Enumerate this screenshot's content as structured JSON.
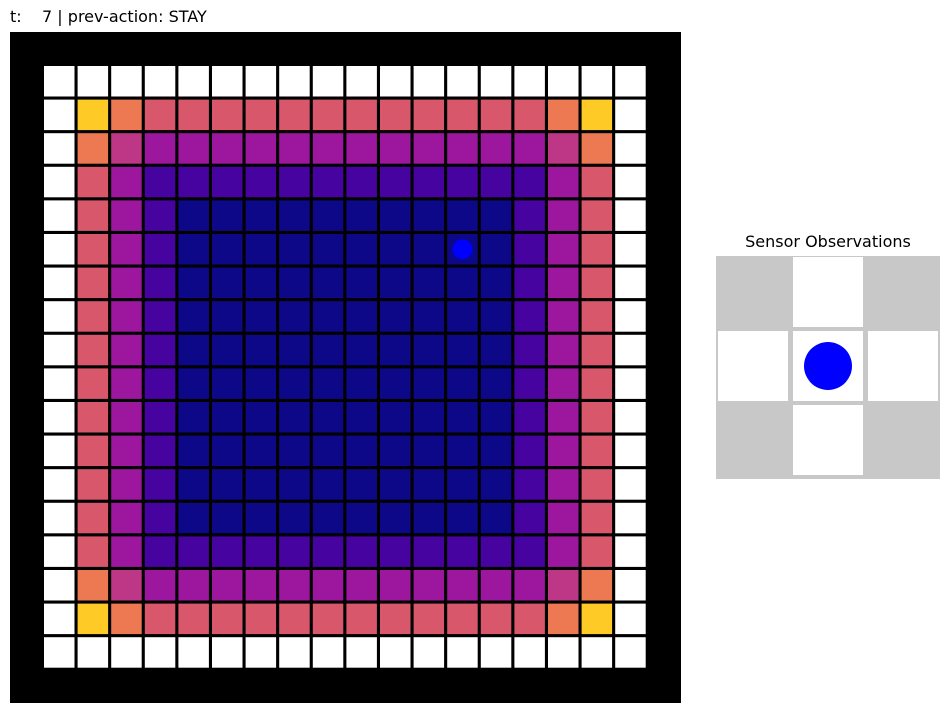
{
  "header": {
    "time_label": "t:",
    "time_value": "7",
    "separator": "|",
    "action_label": "prev-action:",
    "action_value": "STAY"
  },
  "world": {
    "rows": 18,
    "cols": 18,
    "agent": {
      "row": 5,
      "col": 12
    },
    "agent_color": "#0000ff",
    "wall_color": "#000000",
    "empty_cell_color": "#ffffff",
    "colormap": [
      "#0d0887",
      "#46039f",
      "#7201a8",
      "#9c179e",
      "#bd3786",
      "#d8576b",
      "#ed7953",
      "#fb9f3a",
      "#fdca26"
    ]
  },
  "sensor": {
    "title": "Sensor Observations",
    "grid": [
      [
        "unknown",
        "free",
        "unknown"
      ],
      [
        "free",
        "agent",
        "free"
      ],
      [
        "unknown",
        "free",
        "unknown"
      ]
    ],
    "unknown_color": "#c8c8c8",
    "free_color": "#ffffff",
    "agent_color": "#0000ff"
  }
}
